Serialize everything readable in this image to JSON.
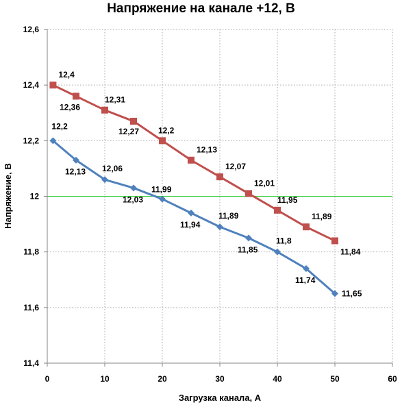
{
  "chart_data": {
    "type": "line",
    "title": "Напряжение на канале +12, В",
    "xlabel": "Загрузка канала, А",
    "ylabel": "Напряжение, В",
    "xlim": [
      0,
      60
    ],
    "ylim": [
      11.4,
      12.6
    ],
    "x_ticks": [
      "0",
      "10",
      "20",
      "30",
      "40",
      "50",
      "60"
    ],
    "y_ticks": [
      "11,4",
      "11,6",
      "11,8",
      "12",
      "12,2",
      "12,4",
      "12,6"
    ],
    "grid": true,
    "legend": "none",
    "reference_line": {
      "y": 12,
      "color": "#33cc33"
    },
    "series": [
      {
        "color": "#c0504d",
        "marker": "square",
        "x": [
          1,
          5,
          10,
          15,
          20,
          25,
          30,
          35,
          40,
          45,
          50
        ],
        "values": [
          12.4,
          12.36,
          12.31,
          12.27,
          12.2,
          12.13,
          12.07,
          12.01,
          11.95,
          11.89,
          11.84
        ],
        "labels": [
          "12,4",
          "12,36",
          "12,31",
          "12,27",
          "12,2",
          "12,13",
          "12,07",
          "12,01",
          "11,95",
          "11,89",
          "11,84"
        ]
      },
      {
        "color": "#4f81bd",
        "marker": "diamond",
        "x": [
          1,
          5,
          10,
          15,
          20,
          25,
          30,
          35,
          40,
          45,
          50
        ],
        "values": [
          12.2,
          12.13,
          12.06,
          12.03,
          11.99,
          11.94,
          11.89,
          11.85,
          11.8,
          11.74,
          11.65
        ],
        "labels": [
          "12,2",
          "12,13",
          "12,06",
          "12,03",
          "11,99",
          "11,94",
          "11,89",
          "11,85",
          "11,8",
          "11,74",
          "11,65"
        ]
      }
    ]
  }
}
